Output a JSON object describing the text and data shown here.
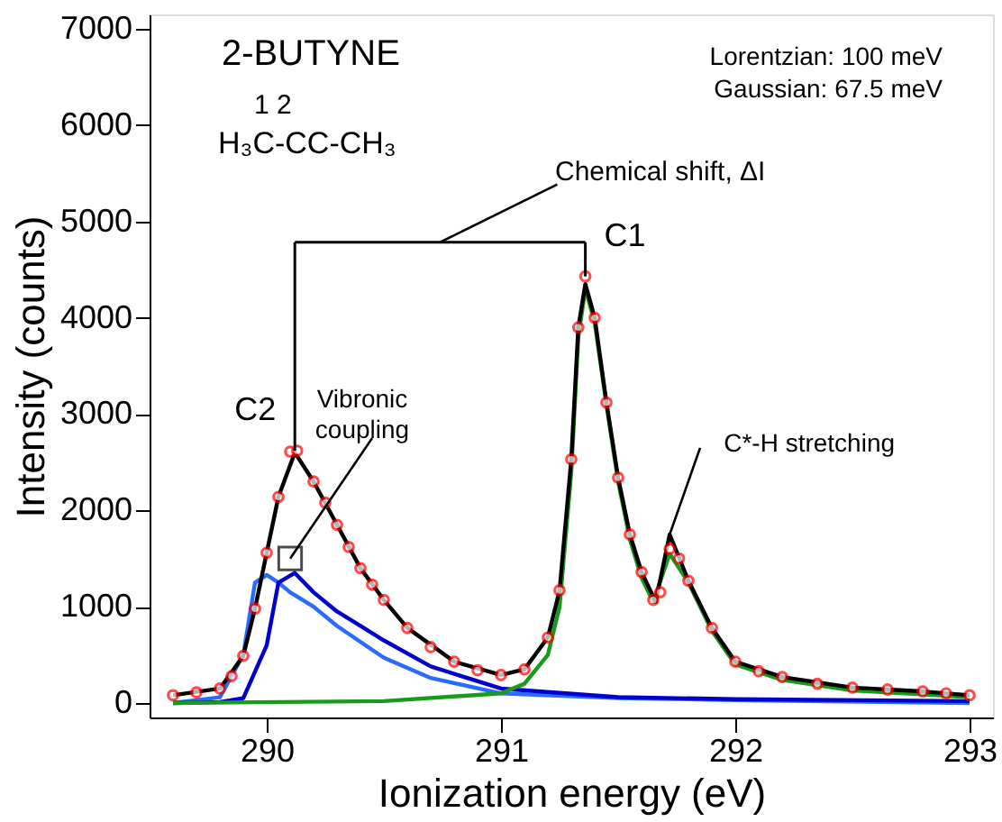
{
  "chart_data": {
    "type": "line",
    "xlabel": "Ionization energy (eV)",
    "ylabel": "Intensity (counts)",
    "xlim": [
      289.5,
      293.1
    ],
    "xticks": [
      290,
      291,
      292,
      293
    ],
    "ylim": [
      -150,
      7150
    ],
    "yticks": [
      0,
      1000,
      2000,
      3000,
      4000,
      5000,
      6000,
      7000
    ],
    "grid": false,
    "series": [
      {
        "color": "#2a6aff",
        "x": [
          289.6,
          289.8,
          289.9,
          289.95,
          290.0,
          290.05,
          290.1,
          290.2,
          290.3,
          290.5,
          290.7,
          291.0,
          291.5,
          292.0,
          293.0
        ],
        "values": [
          0,
          60,
          500,
          1250,
          1330,
          1250,
          1150,
          1000,
          800,
          470,
          260,
          100,
          50,
          30,
          0
        ]
      },
      {
        "color": "#0000cc",
        "x": [
          289.6,
          289.8,
          289.9,
          290.0,
          290.05,
          290.12,
          290.2,
          290.3,
          290.4,
          290.5,
          290.7,
          291.0,
          291.5,
          292.0,
          293.0
        ],
        "values": [
          0,
          10,
          50,
          600,
          1250,
          1350,
          1150,
          950,
          800,
          650,
          380,
          150,
          60,
          40,
          20
        ]
      },
      {
        "color": "#1a9a1a",
        "x": [
          289.6,
          290.5,
          291.0,
          291.1,
          291.2,
          291.25,
          291.3,
          291.33,
          291.36,
          291.4,
          291.45,
          291.5,
          291.55,
          291.6,
          291.65,
          291.72,
          291.8,
          291.9,
          292.0,
          292.2,
          292.5,
          292.8,
          293.0
        ],
        "values": [
          0,
          20,
          100,
          200,
          500,
          1000,
          2400,
          3800,
          4300,
          3950,
          3100,
          2300,
          1700,
          1300,
          1050,
          1550,
          1250,
          750,
          400,
          240,
          130,
          90,
          60
        ]
      },
      {
        "color": "#000000",
        "x": [
          289.6,
          289.8,
          289.9,
          289.95,
          290.0,
          290.05,
          290.12,
          290.2,
          290.3,
          290.4,
          290.5,
          290.6,
          290.8,
          291.0,
          291.1,
          291.2,
          291.25,
          291.3,
          291.33,
          291.36,
          291.4,
          291.45,
          291.5,
          291.55,
          291.6,
          291.66,
          291.72,
          291.8,
          291.9,
          292.0,
          292.2,
          292.5,
          292.8,
          293.0
        ],
        "values": [
          80,
          150,
          490,
          980,
          1560,
          2140,
          2600,
          2300,
          1850,
          1400,
          1070,
          780,
          430,
          290,
          350,
          680,
          1170,
          2530,
          3900,
          4350,
          4000,
          3120,
          2340,
          1750,
          1360,
          1050,
          1750,
          1270,
          780,
          430,
          270,
          160,
          120,
          80
        ]
      },
      {
        "type": "scatter",
        "marker": "circle",
        "color": "#ff0000",
        "x": [
          289.6,
          289.7,
          289.8,
          289.85,
          289.9,
          289.95,
          290.0,
          290.05,
          290.1,
          290.13,
          290.2,
          290.25,
          290.3,
          290.35,
          290.4,
          290.45,
          290.5,
          290.6,
          290.7,
          290.8,
          290.9,
          291.0,
          291.1,
          291.2,
          291.25,
          291.3,
          291.33,
          291.36,
          291.4,
          291.45,
          291.5,
          291.55,
          291.6,
          291.65,
          291.68,
          291.72,
          291.76,
          291.8,
          291.9,
          292.0,
          292.1,
          292.2,
          292.35,
          292.5,
          292.65,
          292.8,
          292.9,
          293.0
        ],
        "values": [
          80,
          110,
          150,
          280,
          490,
          980,
          1560,
          2140,
          2610,
          2620,
          2300,
          2080,
          1850,
          1620,
          1400,
          1230,
          1070,
          780,
          580,
          430,
          340,
          290,
          350,
          680,
          1170,
          2530,
          3900,
          4430,
          4000,
          3120,
          2340,
          1750,
          1360,
          1070,
          1150,
          1600,
          1500,
          1270,
          780,
          430,
          330,
          270,
          200,
          160,
          140,
          120,
          100,
          80
        ]
      }
    ],
    "annotations": [
      "2-BUTYNE",
      "1  2",
      "H₃C-CC-CH₃",
      "Lorentzian: 100 meV",
      "Gaussian: 67.5 meV",
      "Chemical shift, ΔI",
      {
        "text": "C2",
        "x": 290.12,
        "y": 2620
      },
      {
        "text": "C1",
        "x": 291.36,
        "y": 4430
      },
      {
        "text": "Vibronic coupling",
        "x": 290.1,
        "y": 1500
      },
      {
        "text": "C*-H stretching",
        "x": 291.72,
        "y": 1750
      }
    ]
  }
}
